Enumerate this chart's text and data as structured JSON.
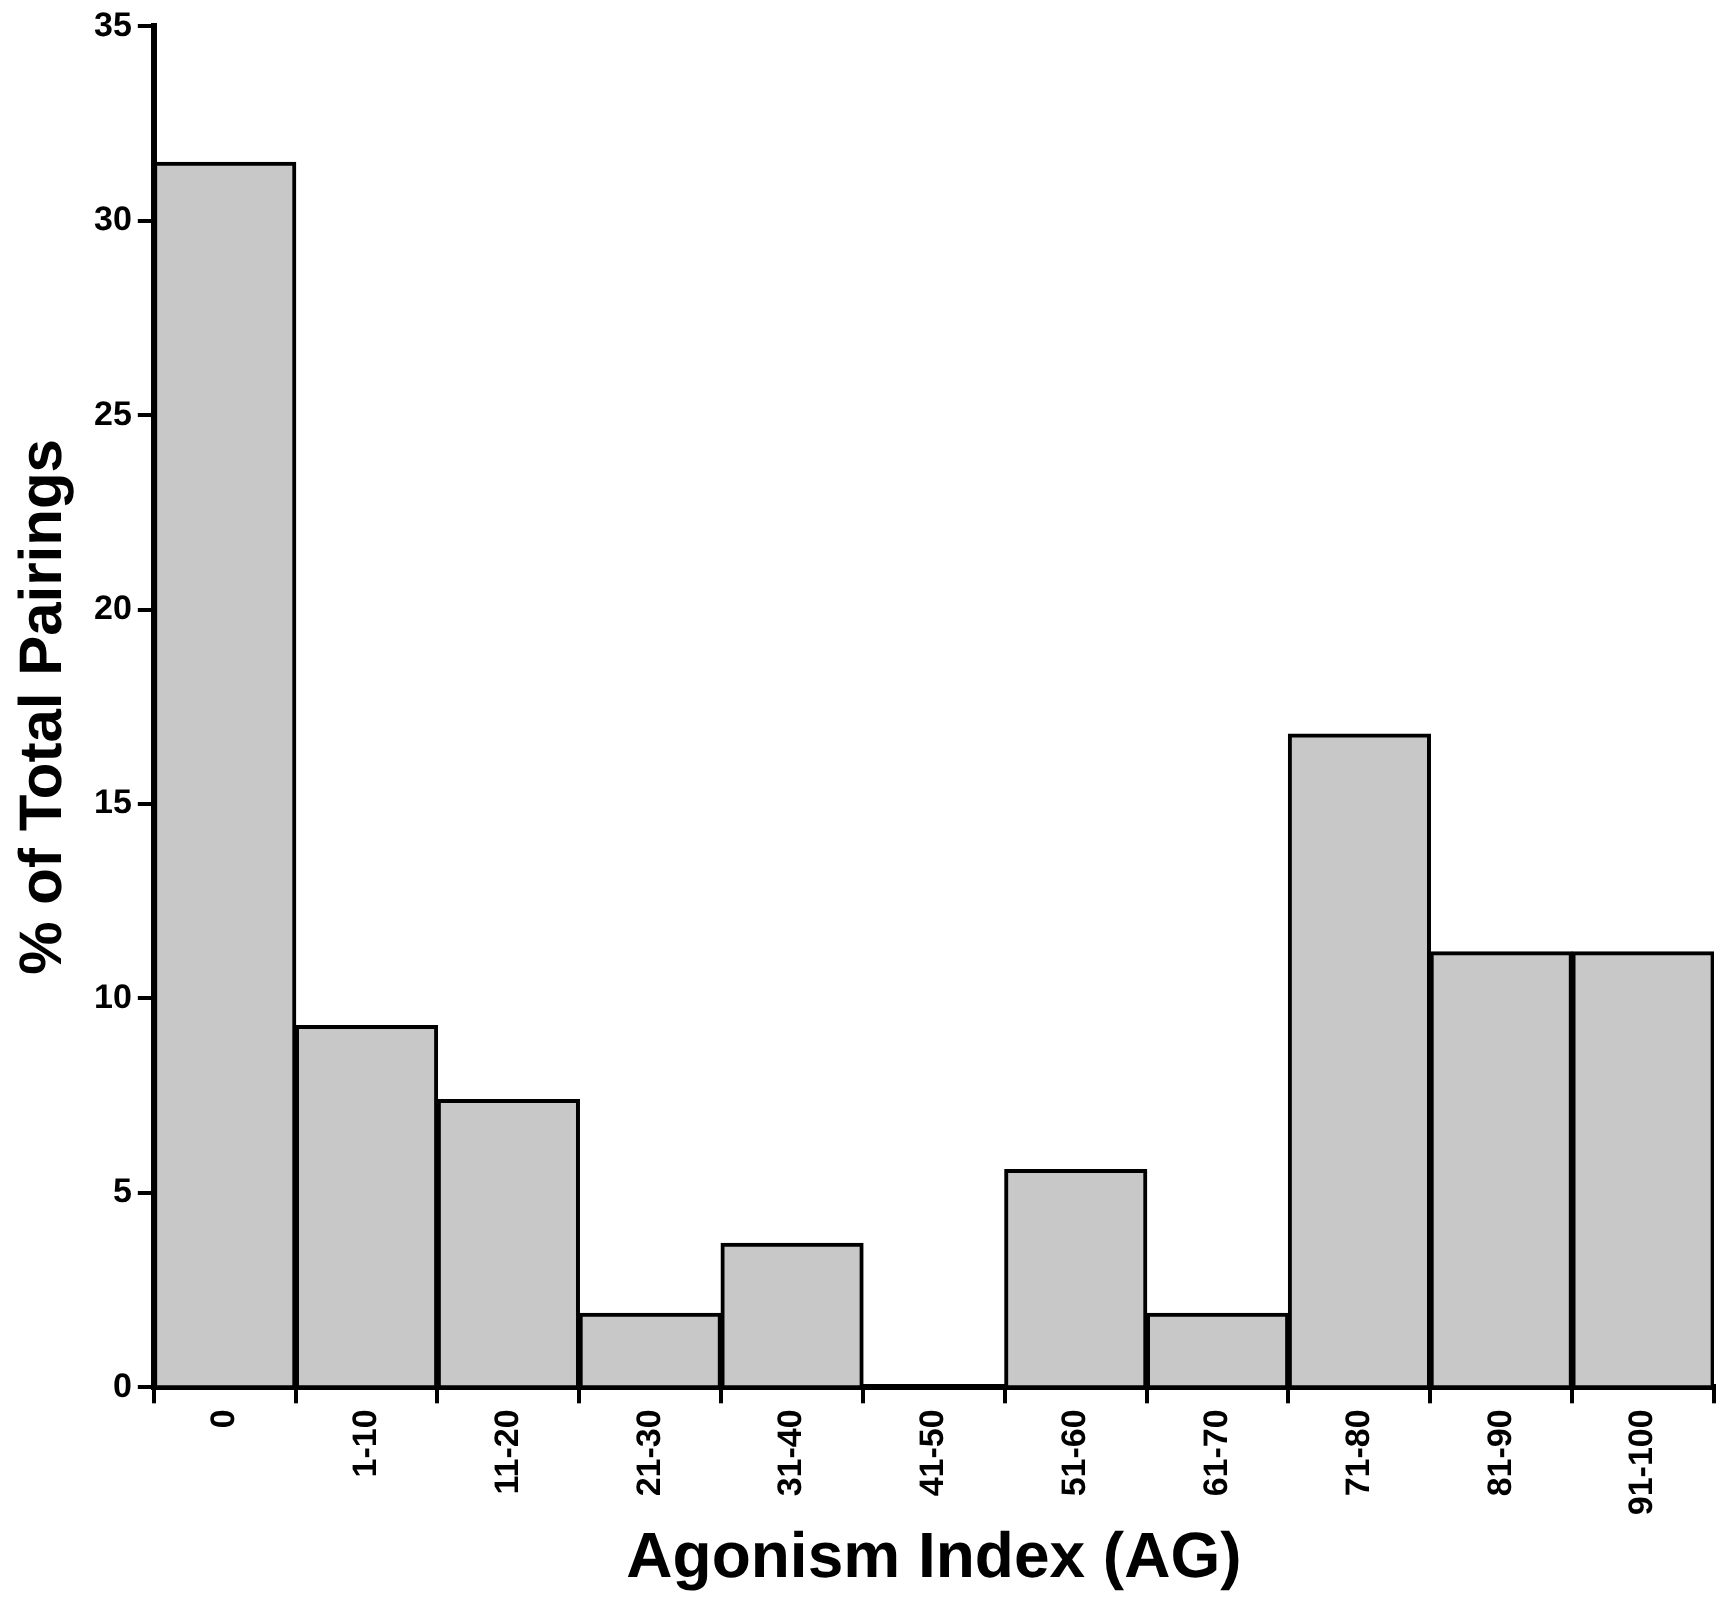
{
  "chart_data": {
    "type": "bar",
    "xlabel": "Agonism Index (AG)",
    "ylabel": "% of Total Pairings",
    "categories": [
      "0",
      "1-10",
      "11-20",
      "21-30",
      "31-40",
      "41-50",
      "51-60",
      "61-70",
      "71-80",
      "81-90",
      "91-100"
    ],
    "values": [
      31.5,
      9.3,
      7.4,
      1.9,
      3.7,
      0,
      5.6,
      1.9,
      16.8,
      11.2,
      11.2
    ],
    "color": "#c8c8c8",
    "ylim": [
      0,
      35
    ],
    "yticks": [
      0,
      5,
      10,
      15,
      20,
      25,
      30,
      35
    ],
    "grid": false,
    "legend": false
  }
}
